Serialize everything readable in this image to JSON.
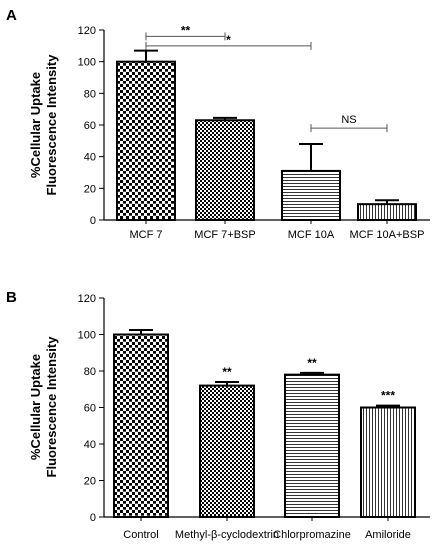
{
  "chart_data": [
    {
      "panel": "A",
      "type": "bar",
      "ylabel": "%Cellular Uptake\nFluorescence Intensity",
      "ylim": [
        0,
        120
      ],
      "yticks": [
        0,
        20,
        40,
        60,
        80,
        100,
        120
      ],
      "categories": [
        "MCF 7",
        "MCF 7+BSP",
        "MCF 10A",
        "MCF 10A+BSP"
      ],
      "values": [
        100,
        63,
        31,
        10
      ],
      "errors": [
        7,
        1.5,
        17,
        2.5
      ],
      "patterns": [
        "checker",
        "checker-dense",
        "hlines",
        "vlines"
      ],
      "significance": [
        {
          "from": 0,
          "to": 1,
          "label": "**",
          "y": 116
        },
        {
          "from": 0,
          "to": 2,
          "label": "*",
          "y": 110
        },
        {
          "from": 2,
          "to": 3,
          "label": "NS",
          "y": 58
        }
      ]
    },
    {
      "panel": "B",
      "type": "bar",
      "ylabel": "%Cellular Uptake\nFluorescence Intensity",
      "ylim": [
        0,
        120
      ],
      "yticks": [
        0,
        20,
        40,
        60,
        80,
        100,
        120
      ],
      "categories": [
        "Control",
        "Methyl-β-cyclodextrin",
        "Chlorpromazine",
        "Amiloride"
      ],
      "values": [
        100,
        72,
        78,
        60
      ],
      "errors": [
        2.5,
        2,
        1,
        1
      ],
      "patterns": [
        "checker",
        "checker-dense",
        "hlines",
        "vlines"
      ],
      "annotations": [
        "",
        "**",
        "**",
        "***"
      ]
    }
  ]
}
